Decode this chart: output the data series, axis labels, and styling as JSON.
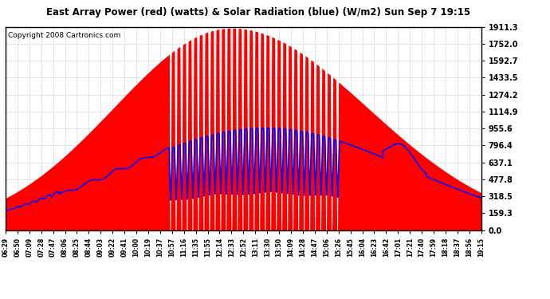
{
  "title": "East Array Power (red) (watts) & Solar Radiation (blue) (W/m2) Sun Sep 7 19:15",
  "copyright": "Copyright 2008 Cartronics.com",
  "background_color": "#ffffff",
  "plot_bg_color": "#ffffff",
  "grid_color": "#cccccc",
  "red_fill_color": "#ff0000",
  "blue_line_color": "#0000ff",
  "y_ticks": [
    0.0,
    159.3,
    318.5,
    477.8,
    637.1,
    796.4,
    955.6,
    1114.9,
    1274.2,
    1433.5,
    1592.7,
    1752.0,
    1911.3
  ],
  "y_max": 1911.3,
  "x_tick_labels": [
    "06:29",
    "06:50",
    "07:09",
    "07:28",
    "07:47",
    "08:06",
    "08:25",
    "08:44",
    "09:03",
    "09:22",
    "09:41",
    "10:00",
    "10:19",
    "10:37",
    "10:57",
    "11:16",
    "11:35",
    "11:55",
    "12:14",
    "12:33",
    "12:52",
    "13:11",
    "13:30",
    "13:50",
    "14:09",
    "14:28",
    "14:47",
    "15:06",
    "15:26",
    "15:45",
    "16:04",
    "16:23",
    "16:42",
    "17:01",
    "17:21",
    "17:40",
    "17:59",
    "18:18",
    "18:37",
    "18:56",
    "19:15"
  ]
}
